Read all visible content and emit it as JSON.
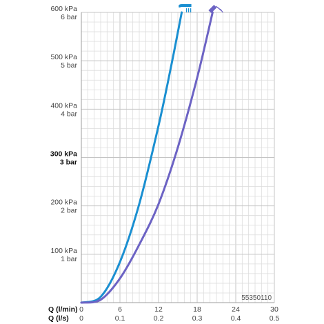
{
  "chart_data": {
    "type": "line",
    "title": "",
    "code_label": "55350110",
    "x_axes": [
      {
        "label": "Q (l/min)",
        "ticks": [
          "0",
          "6",
          "12",
          "18",
          "24",
          "30"
        ],
        "range": [
          0,
          30
        ]
      },
      {
        "label": "Q (l/s)",
        "ticks": [
          "0",
          "0.1",
          "0.2",
          "0.3",
          "0.4",
          "0.5"
        ],
        "range": [
          0,
          0.5
        ]
      }
    ],
    "y_axis": {
      "range": [
        0,
        600
      ],
      "unit": "kPa",
      "ticks": [
        {
          "value": 100,
          "kpa": "100 kPa",
          "bar": "1 bar",
          "bold": false
        },
        {
          "value": 200,
          "kpa": "200 kPa",
          "bar": "2 bar",
          "bold": false
        },
        {
          "value": 300,
          "kpa": "300 kPa",
          "bar": "3 bar",
          "bold": true
        },
        {
          "value": 400,
          "kpa": "400 kPa",
          "bar": "4 bar",
          "bold": false
        },
        {
          "value": 500,
          "kpa": "500 kPa",
          "bar": "5 bar",
          "bold": false
        },
        {
          "value": 600,
          "kpa": "600 kPa",
          "bar": "6 bar",
          "bold": false
        }
      ]
    },
    "grid": true,
    "series": [
      {
        "icon": "rain-spray-shower-icon",
        "color": "#1a8fd1",
        "points": [
          [
            0,
            0
          ],
          [
            3,
            12
          ],
          [
            6,
            84
          ],
          [
            9,
            204
          ],
          [
            12,
            366
          ],
          [
            14,
            492
          ],
          [
            15.6,
            600
          ]
        ]
      },
      {
        "icon": "massage-spray-shower-icon",
        "color": "#6c63c4",
        "points": [
          [
            0,
            0
          ],
          [
            3,
            6
          ],
          [
            6,
            50
          ],
          [
            9,
            120
          ],
          [
            12,
            204
          ],
          [
            15,
            321
          ],
          [
            18,
            465
          ],
          [
            20.4,
            600
          ]
        ]
      }
    ]
  }
}
